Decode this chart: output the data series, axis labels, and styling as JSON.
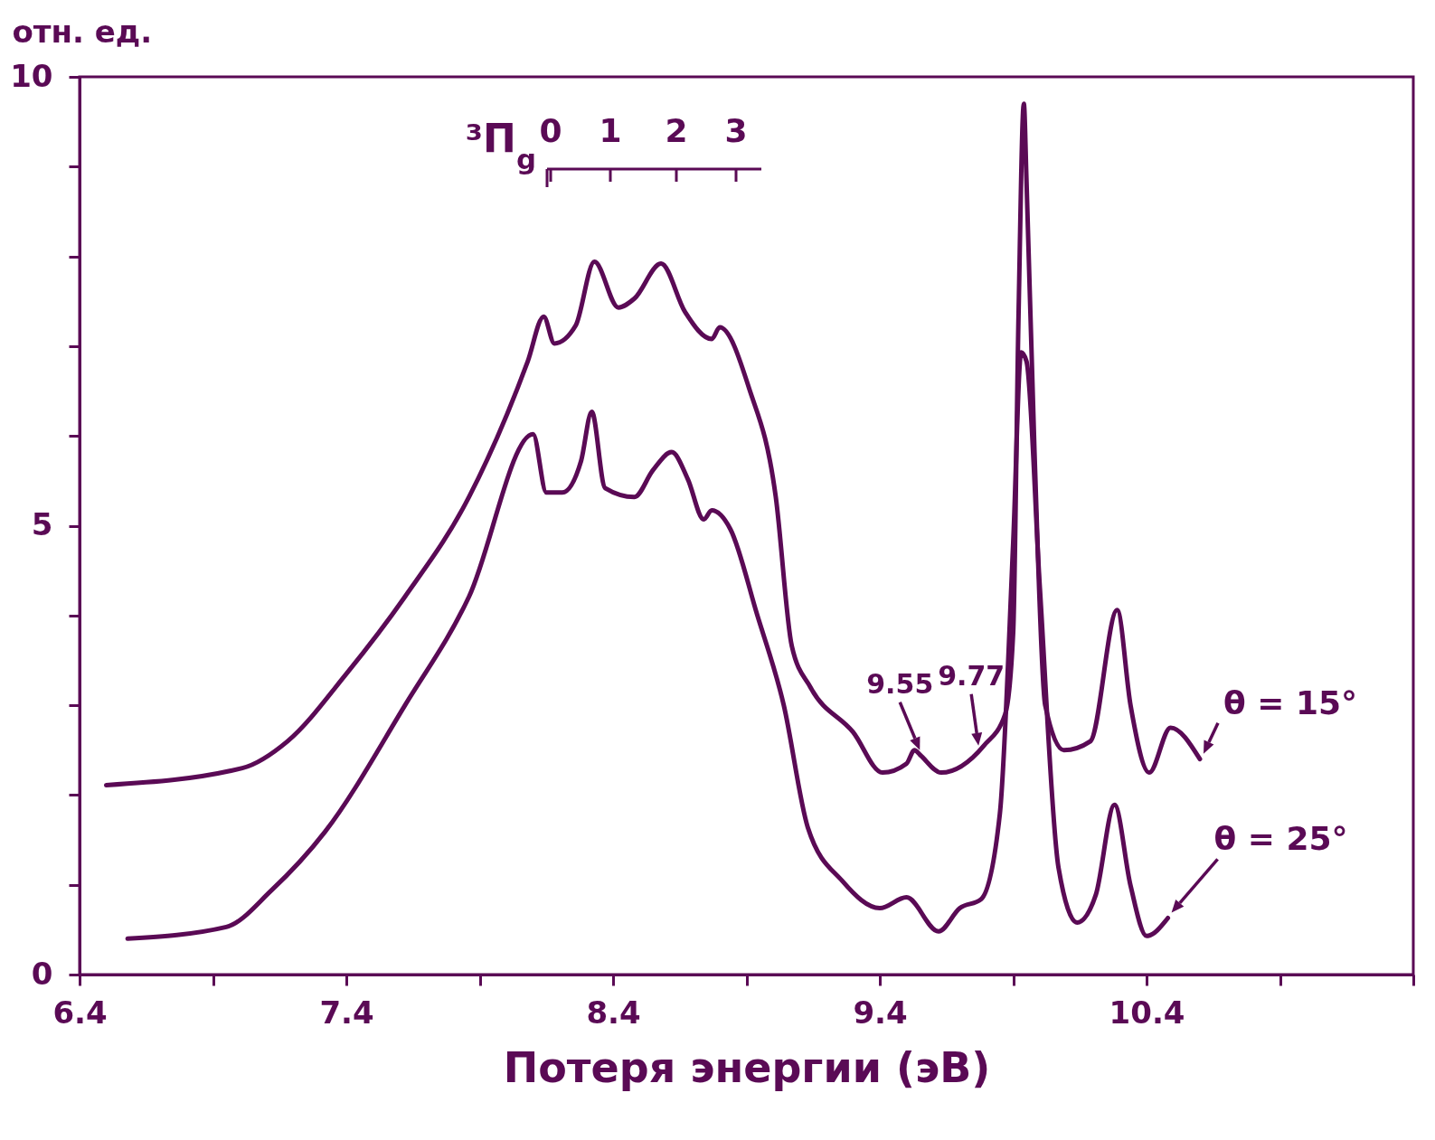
{
  "chart_data": {
    "type": "line",
    "xlabel": "Потеря энергии (эВ)",
    "ylabel": "отн. ед.",
    "xlim": [
      6.4,
      11.4
    ],
    "xticks": [
      6.4,
      {
        "value": 6.9,
        "label": null
      },
      7.4,
      {
        "value": 7.9,
        "label": null
      },
      8.4,
      {
        "value": 8.9,
        "label": null
      },
      9.4,
      {
        "value": 9.9,
        "label": null
      },
      10.4,
      {
        "value": 10.9,
        "label": null
      },
      {
        "value": 11.4,
        "label": null
      }
    ],
    "ylim": [
      0,
      10
    ],
    "yticks": [
      0,
      {
        "value": 1,
        "label": null
      },
      {
        "value": 2,
        "label": null
      },
      {
        "value": 3,
        "label": null
      },
      {
        "value": 4,
        "label": null
      },
      5,
      {
        "value": 6,
        "label": null
      },
      {
        "value": 7,
        "label": null
      },
      {
        "value": 8,
        "label": null
      },
      {
        "value": 9,
        "label": null
      },
      10
    ],
    "series": [
      {
        "name": "θ = 15°",
        "color": "#5a0a55",
        "x": [
          6.5,
          7.01,
          7.18,
          7.4,
          7.62,
          7.86,
          8.08,
          8.14,
          8.18,
          8.26,
          8.33,
          8.42,
          8.48,
          8.58,
          8.67,
          8.77,
          8.8,
          8.91,
          9.01,
          9.07,
          9.14,
          9.3,
          9.41,
          9.5,
          9.53,
          9.55,
          9.63,
          9.79,
          9.87,
          9.9,
          9.92,
          9.94,
          9.95,
          9.98,
          10.02,
          10.09,
          10.19,
          10.29,
          10.34,
          10.41,
          10.49,
          10.6
        ],
        "values": [
          2.11,
          2.3,
          2.6,
          3.35,
          4.21,
          5.32,
          6.83,
          7.33,
          7.03,
          7.23,
          7.94,
          7.43,
          7.53,
          7.92,
          7.38,
          7.08,
          7.21,
          6.53,
          5.32,
          3.66,
          3.2,
          2.7,
          2.25,
          2.35,
          2.5,
          2.45,
          2.25,
          2.55,
          2.9,
          3.81,
          7.33,
          9.7,
          8.84,
          5.82,
          3.0,
          2.5,
          2.6,
          4.06,
          3.0,
          2.25,
          2.75,
          2.4
        ]
      },
      {
        "name": "θ = 25°",
        "color": "#5a0a55",
        "x": [
          6.58,
          6.95,
          7.12,
          7.32,
          7.62,
          7.86,
          8.1,
          8.15,
          8.21,
          8.28,
          8.32,
          8.37,
          8.48,
          8.55,
          8.62,
          8.68,
          8.74,
          8.77,
          8.84,
          8.94,
          9.04,
          9.13,
          9.26,
          9.4,
          9.5,
          9.62,
          9.7,
          9.78,
          9.85,
          9.9,
          9.93,
          9.95,
          10.0,
          10.07,
          10.14,
          10.21,
          10.28,
          10.34,
          10.4,
          10.48
        ],
        "values": [
          0.4,
          0.53,
          0.94,
          1.59,
          3.0,
          4.21,
          6.02,
          5.37,
          5.37,
          5.72,
          6.27,
          5.42,
          5.32,
          5.62,
          5.82,
          5.52,
          5.07,
          5.17,
          4.96,
          4.01,
          3.0,
          1.64,
          1.04,
          0.74,
          0.86,
          0.48,
          0.74,
          0.84,
          1.79,
          4.81,
          6.93,
          6.83,
          4.31,
          1.19,
          0.58,
          0.89,
          1.89,
          0.99,
          0.43,
          0.63
        ]
      }
    ],
    "annotations": [
      {
        "text": "9.55",
        "x": 9.55,
        "y": 2.45
      },
      {
        "text": "9.77",
        "x": 9.77,
        "y": 2.5
      },
      "³Π$_{g}$",
      "0",
      "1",
      "2",
      "3"
    ]
  }
}
